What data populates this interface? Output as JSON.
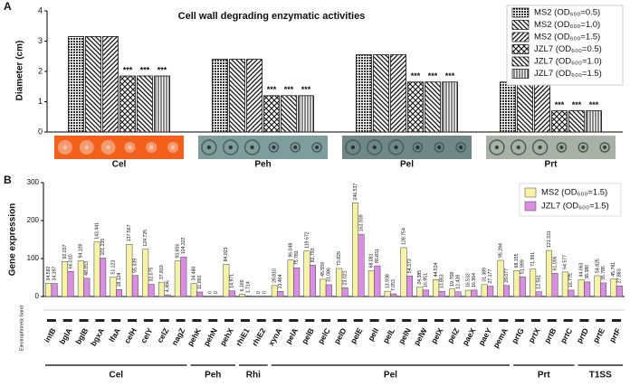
{
  "chart_data": [
    {
      "type": "bar",
      "panel": "A",
      "title": "Cell wall degrading enzymatic activities",
      "y_label": "Diameter (cm)",
      "categories": [
        "Cel",
        "Peh",
        "Pel",
        "Prt"
      ],
      "series": [
        {
          "name": "MS2 (OD₆₀₀=0.5)",
          "pattern": "dots",
          "values": [
            3.15,
            2.4,
            2.55,
            1.65
          ]
        },
        {
          "name": "MS2 (OD₆₀₀=1.0)",
          "pattern": "diag-down",
          "values": [
            3.15,
            2.4,
            2.55,
            1.65
          ]
        },
        {
          "name": "MS2 (OD₆₀₀=1.5)",
          "pattern": "diag-up",
          "values": [
            3.15,
            2.4,
            2.55,
            1.65
          ]
        },
        {
          "name": "JZL7 (OD₆₀₀=0.5)",
          "pattern": "checker",
          "values": [
            1.85,
            1.2,
            1.65,
            0.7
          ]
        },
        {
          "name": "JZL7 (OD₆₀₀=1.0)",
          "pattern": "diag-down",
          "values": [
            1.85,
            1.2,
            1.65,
            0.7
          ]
        },
        {
          "name": "JZL7 (OD₆₀₀=1.5)",
          "pattern": "vertical",
          "values": [
            1.85,
            1.2,
            1.65,
            0.7
          ]
        }
      ],
      "annotation": "***",
      "ylim": [
        0,
        4
      ],
      "yticks": [
        0,
        1,
        2,
        3,
        4
      ]
    },
    {
      "type": "bar",
      "panel": "B",
      "y_label": "Gene expression",
      "band_label": "Electrophoretic band",
      "categories": [
        "intB",
        "bglA",
        "bglB",
        "bgxA",
        "lfaA",
        "celH",
        "celY",
        "celZ",
        "nagZ",
        "pehK",
        "pehN",
        "pehX",
        "rhiE1",
        "rhiE2",
        "xynA",
        "pelA",
        "pelB",
        "pelC",
        "pelD",
        "pelE",
        "pelI",
        "pelL",
        "pelN",
        "pelW",
        "pelX",
        "pelZ",
        "paeX",
        "paeY",
        "pemA",
        "prtG",
        "prtX",
        "prtB",
        "prtC",
        "prtD",
        "prtE",
        "prtF"
      ],
      "groups": [
        "Cel",
        "Peh",
        "Rhi",
        "Pel",
        "Prt",
        "T1SS"
      ],
      "series": [
        {
          "name": "MS2 (OD₆₀₀=1.5)",
          "color": "#f7f3a6",
          "values": [
            34.592,
            92.037,
            94.109,
            143.441,
            51.123,
            137.567,
            124.725,
            37.819,
            93.656,
            34.48,
            0,
            84.923,
            6.169,
            0,
            28.81,
            96.048,
            119.672,
            45.559,
            73.829,
            246.537,
            68.081,
            13.938,
            128.754,
            24.385,
            44.534,
            19.708,
            16.532,
            31.389,
            95.294,
            68.155,
            71.991,
            121.331,
            64.577,
            44.063,
            54.825,
            45.781
          ],
          "value_labels": [
            "34.592",
            "92.037",
            "94.109",
            "143.441",
            "51.123",
            "137.567",
            "124.725",
            "37.819",
            "93.656",
            "34.480",
            "0",
            "84.923",
            "6.169",
            "0",
            "28.810",
            "96.048",
            "119.672",
            "45.559",
            "73.829",
            "246.537",
            "68.081",
            "13.938",
            "128.754",
            "24.385",
            "44.534",
            "19.708",
            "16.532",
            "31.389",
            "95.294",
            "68.155",
            "71.991",
            "121.331",
            "64.577",
            "44.063",
            "54.825",
            "45.781"
          ]
        },
        {
          "name": "JZL7 (OD₆₀₀=1.5)",
          "color": "#d98ee3",
          "values": [
            34.397,
            66.01,
            48.053,
            101.235,
            18.124,
            55.339,
            32.075,
            4.496,
            104.322,
            11.892,
            0,
            14.971,
            1.714,
            0,
            13.464,
            75.782,
            82.793,
            31.086,
            23.021,
            163.939,
            80.831,
            7.053,
            54.372,
            16.951,
            13.853,
            12.428,
            16.964,
            27.177,
            29.077,
            51.999,
            12.561,
            61.006,
            16.775,
            38.38,
            35.785,
            27.883
          ],
          "value_labels": [
            "34.397",
            "66.010",
            "48.053",
            "101.235",
            "18.124",
            "55.339",
            "32.075",
            "4.496",
            "104.322",
            "11.892",
            "0",
            "14.971",
            "1.714",
            "0",
            "13.464",
            "75.782",
            "82.793",
            "31.086",
            "23.021",
            "163.939",
            "80.831",
            "7.053",
            "54.372",
            "16.951",
            "13.853",
            "12.428",
            "16.964",
            "27.177",
            "29.077",
            "51.999",
            "12.561",
            "61.006",
            "16.775",
            "38.380",
            "35.785",
            "27.883"
          ]
        }
      ],
      "ylim": [
        0,
        300
      ],
      "yticks": [
        0,
        100,
        200,
        300
      ]
    }
  ]
}
